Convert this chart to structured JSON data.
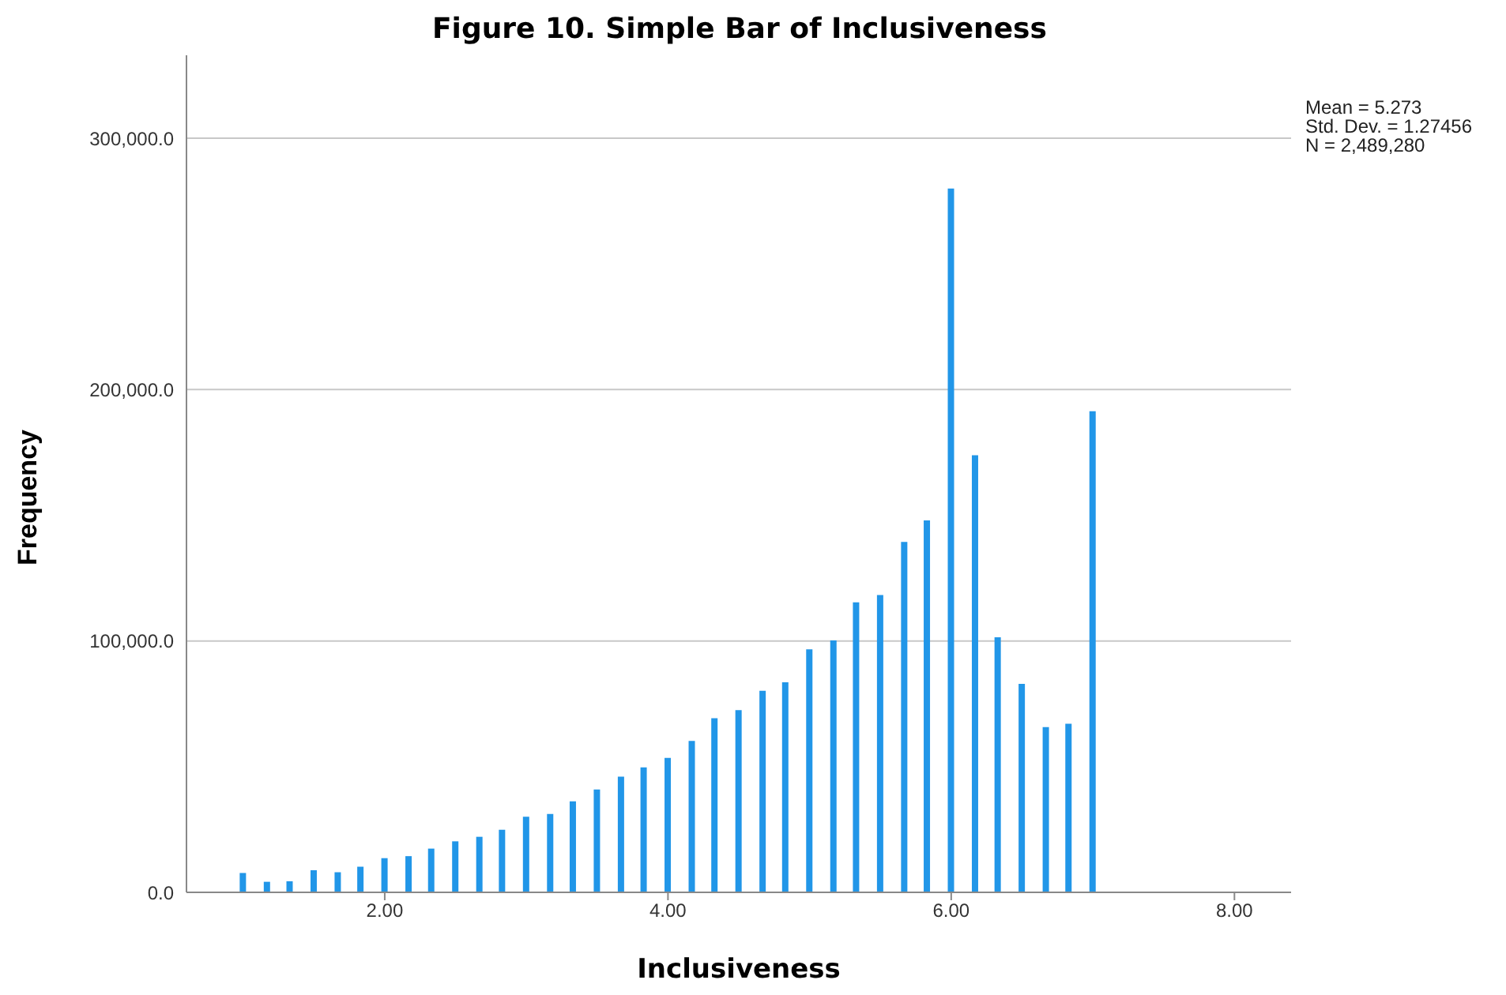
{
  "chart_data": {
    "type": "bar",
    "title": "Figure 10.  Simple Bar of Inclusiveness",
    "xlabel": "Inclusiveness",
    "ylabel": "Frequency",
    "annotations": [
      "Mean = 5.273",
      "Std. Dev. = 1.27456",
      "N = 2,489,280"
    ],
    "x": [
      1,
      1.17,
      1.33,
      1.5,
      1.67,
      1.83,
      2,
      2.17,
      2.33,
      2.5,
      2.67,
      2.83,
      3,
      3.17,
      3.33,
      3.5,
      3.67,
      3.83,
      4,
      4.17,
      4.33,
      4.5,
      4.67,
      4.83,
      5,
      5.17,
      5.33,
      5.5,
      5.67,
      5.83,
      6,
      6.17,
      6.33,
      6.5,
      6.67,
      6.83,
      7
    ],
    "values": [
      7700,
      4200,
      4400,
      8800,
      8000,
      10200,
      13600,
      14400,
      17400,
      20300,
      22100,
      24900,
      30100,
      31200,
      36200,
      40900,
      46000,
      49700,
      53500,
      60200,
      69300,
      72500,
      80200,
      83600,
      96700,
      100200,
      115400,
      118300,
      139400,
      148000,
      280000,
      173900,
      101500,
      82900,
      65700,
      67100,
      191400
    ],
    "color": "#2196e8",
    "xlim": [
      0.6,
      8.4
    ],
    "xticks": [
      {
        "value": 2,
        "label": "2.00"
      },
      {
        "value": 4,
        "label": "4.00"
      },
      {
        "value": 6,
        "label": "6.00"
      },
      {
        "value": 8,
        "label": "8.00"
      }
    ],
    "ylim": [
      0,
      333000
    ],
    "yticks": [
      {
        "value": 0,
        "label": "0.0"
      },
      {
        "value": 100000,
        "label": "100,000.0"
      },
      {
        "value": 200000,
        "label": "200,000.0"
      },
      {
        "value": 300000,
        "label": "300,000.0"
      }
    ],
    "grid": "y",
    "legend": false
  }
}
